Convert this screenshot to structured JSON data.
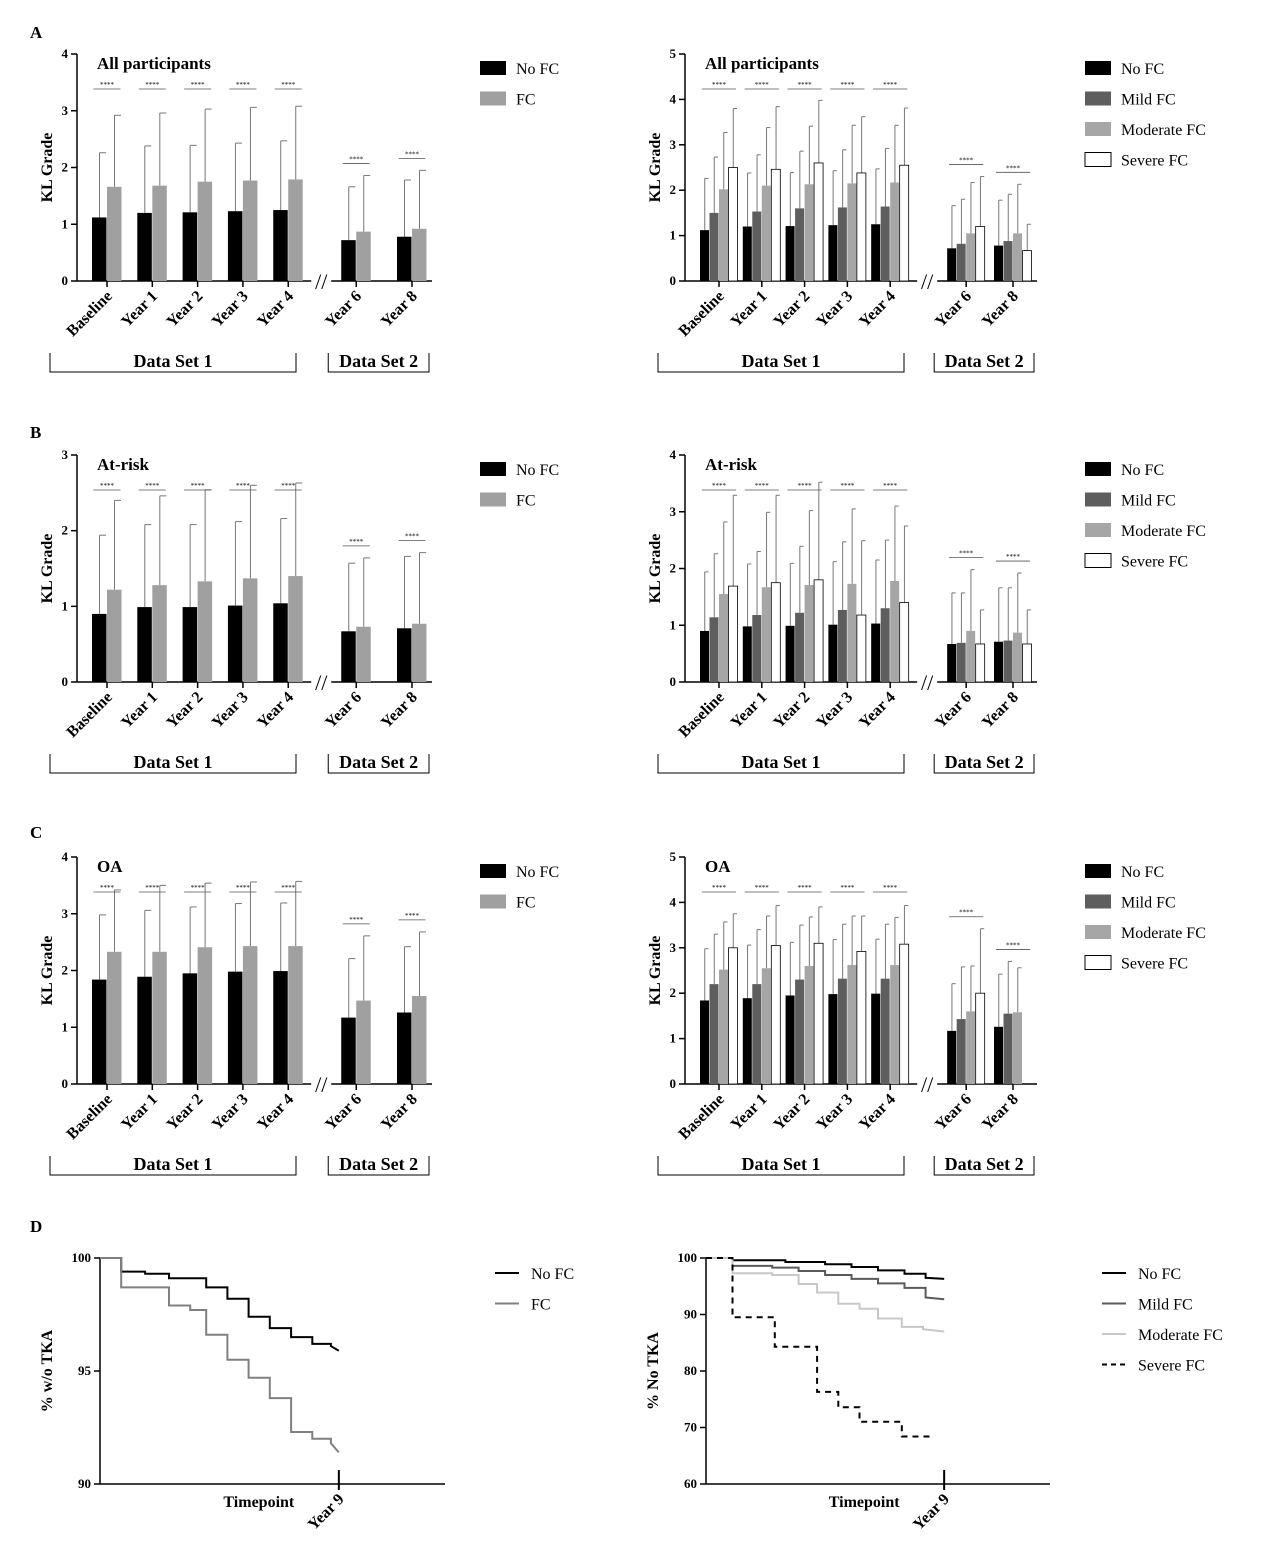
{
  "panel_labels": [
    "A",
    "B",
    "C",
    "D"
  ],
  "colors": {
    "no_fc": "#000000",
    "fc": "#a0a0a0",
    "mild_fc": "#5e5e5e",
    "moderate_fc": "#a6a6a6",
    "severe_fc": "#ffffff",
    "km_no_fc": "#000000",
    "km_fc": "#808080",
    "km_mild_fc": "#5a5a5a",
    "km_moderate_fc": "#c8c8c8",
    "km_severe_fc": "#000000"
  },
  "chart_data": [
    {
      "id": "A-left",
      "panel": "A",
      "type": "bar",
      "title": "All participants",
      "ylabel": "KL Grade",
      "ylim": [
        0,
        4
      ],
      "yticks": [
        "0",
        "1",
        "2",
        "3",
        "4"
      ],
      "categories": [
        "Baseline",
        "Year 1",
        "Year 2",
        "Year 3",
        "Year 4",
        "Year 6",
        "Year 8"
      ],
      "groups": [
        "Data Set 1",
        "Data Set 2"
      ],
      "break_marker": "//",
      "significance": "****",
      "legend": [
        "No FC",
        "FC"
      ],
      "series": [
        {
          "name": "No FC",
          "values": [
            1.12,
            1.2,
            1.21,
            1.23,
            1.25,
            0.72,
            0.78
          ],
          "errors": [
            1.14,
            1.18,
            1.18,
            1.2,
            1.22,
            0.94,
            1.0
          ]
        },
        {
          "name": "FC",
          "values": [
            1.66,
            1.68,
            1.75,
            1.77,
            1.79,
            0.87,
            0.92
          ],
          "errors": [
            1.26,
            1.28,
            1.28,
            1.29,
            1.29,
            0.99,
            1.03
          ]
        }
      ]
    },
    {
      "id": "A-right",
      "panel": "A",
      "type": "bar",
      "title": "All participants",
      "ylabel": "KL Grade",
      "ylim": [
        0,
        5
      ],
      "yticks": [
        "0",
        "1",
        "2",
        "3",
        "4",
        "5"
      ],
      "categories": [
        "Baseline",
        "Year 1",
        "Year 2",
        "Year 3",
        "Year 4",
        "Year 6",
        "Year 8"
      ],
      "groups": [
        "Data Set 1",
        "Data Set 2"
      ],
      "break_marker": "//",
      "significance": "****",
      "legend": [
        "No FC",
        "Mild FC",
        "Moderate FC",
        "Severe FC"
      ],
      "series": [
        {
          "name": "No FC",
          "values": [
            1.12,
            1.2,
            1.21,
            1.23,
            1.25,
            0.72,
            0.78
          ],
          "errors": [
            1.14,
            1.18,
            1.18,
            1.2,
            1.22,
            0.94,
            1.0
          ]
        },
        {
          "name": "Mild FC",
          "values": [
            1.5,
            1.53,
            1.6,
            1.62,
            1.64,
            0.82,
            0.88
          ],
          "errors": [
            1.23,
            1.25,
            1.26,
            1.27,
            1.28,
            0.98,
            1.03
          ]
        },
        {
          "name": "Moderate FC",
          "values": [
            2.02,
            2.1,
            2.13,
            2.15,
            2.17,
            1.05,
            1.05
          ],
          "errors": [
            1.25,
            1.28,
            1.28,
            1.28,
            1.26,
            1.12,
            1.08
          ]
        },
        {
          "name": "Severe FC",
          "values": [
            2.5,
            2.46,
            2.6,
            2.38,
            2.55,
            1.2,
            0.67
          ],
          "errors": [
            1.3,
            1.38,
            1.38,
            1.24,
            1.26,
            1.1,
            0.58
          ]
        }
      ]
    },
    {
      "id": "B-left",
      "panel": "B",
      "type": "bar",
      "title": "At-risk",
      "ylabel": "KL Grade",
      "ylim": [
        0,
        3
      ],
      "yticks": [
        "0",
        "1",
        "2",
        "3"
      ],
      "categories": [
        "Baseline",
        "Year 1",
        "Year 2",
        "Year 3",
        "Year 4",
        "Year 6",
        "Year 8"
      ],
      "groups": [
        "Data Set 1",
        "Data Set 2"
      ],
      "break_marker": "//",
      "significance": "****",
      "legend": [
        "No FC",
        "FC"
      ],
      "series": [
        {
          "name": "No FC",
          "values": [
            0.9,
            0.99,
            0.99,
            1.01,
            1.04,
            0.67,
            0.71
          ],
          "errors": [
            1.04,
            1.09,
            1.09,
            1.11,
            1.12,
            0.9,
            0.95
          ]
        },
        {
          "name": "FC",
          "values": [
            1.22,
            1.28,
            1.33,
            1.37,
            1.4,
            0.73,
            0.77
          ],
          "errors": [
            1.18,
            1.18,
            1.21,
            1.23,
            1.23,
            0.91,
            0.94
          ]
        }
      ]
    },
    {
      "id": "B-right",
      "panel": "B",
      "type": "bar",
      "title": "At-risk",
      "ylabel": "KL Grade",
      "ylim": [
        0,
        4
      ],
      "yticks": [
        "0",
        "1",
        "2",
        "3",
        "4"
      ],
      "categories": [
        "Baseline",
        "Year 1",
        "Year 2",
        "Year 3",
        "Year 4",
        "Year 6",
        "Year 8"
      ],
      "groups": [
        "Data Set 1",
        "Data Set 2"
      ],
      "break_marker": "//",
      "significance": "****",
      "legend": [
        "No FC",
        "Mild FC",
        "Moderate FC",
        "Severe FC"
      ],
      "series": [
        {
          "name": "No FC",
          "values": [
            0.9,
            0.98,
            0.99,
            1.01,
            1.03,
            0.67,
            0.71
          ],
          "errors": [
            1.04,
            1.1,
            1.1,
            1.11,
            1.12,
            0.9,
            0.95
          ]
        },
        {
          "name": "Mild FC",
          "values": [
            1.14,
            1.18,
            1.22,
            1.27,
            1.3,
            0.69,
            0.73
          ],
          "errors": [
            1.12,
            1.12,
            1.17,
            1.2,
            1.2,
            0.88,
            0.93
          ]
        },
        {
          "name": "Moderate FC",
          "values": [
            1.55,
            1.67,
            1.71,
            1.73,
            1.78,
            0.9,
            0.87
          ],
          "errors": [
            1.27,
            1.32,
            1.31,
            1.32,
            1.32,
            1.08,
            1.05
          ]
        },
        {
          "name": "Severe FC",
          "values": [
            1.69,
            1.75,
            1.8,
            1.18,
            1.4,
            0.67,
            0.67
          ],
          "errors": [
            1.6,
            1.54,
            1.72,
            1.31,
            1.35,
            0.6,
            0.6
          ]
        }
      ]
    },
    {
      "id": "C-left",
      "panel": "C",
      "type": "bar",
      "title": "OA",
      "ylabel": "KL Grade",
      "ylim": [
        0,
        4
      ],
      "yticks": [
        "0",
        "1",
        "2",
        "3",
        "4"
      ],
      "categories": [
        "Baseline",
        "Year 1",
        "Year 2",
        "Year 3",
        "Year 4",
        "Year 6",
        "Year 8"
      ],
      "groups": [
        "Data Set 1",
        "Data Set 2"
      ],
      "break_marker": "//",
      "significance": "****",
      "legend": [
        "No FC",
        "FC"
      ],
      "series": [
        {
          "name": "No FC",
          "values": [
            1.84,
            1.89,
            1.95,
            1.98,
            1.99,
            1.17,
            1.26
          ],
          "errors": [
            1.14,
            1.17,
            1.17,
            1.2,
            1.2,
            1.04,
            1.16
          ]
        },
        {
          "name": "FC",
          "values": [
            2.33,
            2.33,
            2.41,
            2.43,
            2.43,
            1.47,
            1.55
          ],
          "errors": [
            1.09,
            1.17,
            1.13,
            1.13,
            1.14,
            1.14,
            1.13
          ]
        }
      ]
    },
    {
      "id": "C-right",
      "panel": "C",
      "type": "bar",
      "title": "OA",
      "ylabel": "KL Grade",
      "ylim": [
        0,
        5
      ],
      "yticks": [
        "0",
        "1",
        "2",
        "3",
        "4",
        "5"
      ],
      "categories": [
        "Baseline",
        "Year 1",
        "Year 2",
        "Year 3",
        "Year 4",
        "Year 6",
        "Year 8"
      ],
      "groups": [
        "Data Set 1",
        "Data Set 2"
      ],
      "break_marker": "//",
      "significance": "****",
      "legend": [
        "No FC",
        "Mild FC",
        "Moderate FC",
        "Severe FC"
      ],
      "series": [
        {
          "name": "No FC",
          "values": [
            1.84,
            1.89,
            1.95,
            1.98,
            1.99,
            1.17,
            1.26
          ],
          "errors": [
            1.14,
            1.17,
            1.17,
            1.2,
            1.2,
            1.04,
            1.16
          ]
        },
        {
          "name": "Mild FC",
          "values": [
            2.2,
            2.2,
            2.3,
            2.32,
            2.32,
            1.43,
            1.55
          ],
          "errors": [
            1.1,
            1.2,
            1.2,
            1.2,
            1.2,
            1.15,
            1.15
          ]
        },
        {
          "name": "Moderate FC",
          "values": [
            2.52,
            2.55,
            2.6,
            2.62,
            2.62,
            1.6,
            1.58
          ],
          "errors": [
            1.05,
            1.15,
            1.08,
            1.08,
            1.05,
            1.0,
            0.98
          ]
        },
        {
          "name": "Severe FC",
          "values": [
            3.0,
            3.05,
            3.1,
            2.92,
            3.08,
            2.0,
            null
          ],
          "errors": [
            0.75,
            0.88,
            0.8,
            0.78,
            0.85,
            1.42,
            null
          ]
        }
      ]
    },
    {
      "id": "D-left",
      "panel": "D",
      "type": "line",
      "step": true,
      "ylabel": "% w/o TKA",
      "ylim": [
        90,
        100
      ],
      "yticks": [
        "90",
        "95",
        "100"
      ],
      "xlabel": "Timepoint",
      "xtick": "Year 9",
      "xlim": [
        0,
        13
      ],
      "xtick_at": 9,
      "legend": [
        "No FC",
        "FC"
      ],
      "series": [
        {
          "name": "No FC",
          "style": "solid",
          "x": [
            0,
            0.8,
            0.8,
            1.7,
            1.7,
            2.6,
            2.6,
            4.0,
            4.0,
            4.8,
            4.8,
            5.6,
            5.6,
            6.4,
            6.4,
            7.2,
            7.2,
            8.0,
            8.0,
            8.7,
            8.7,
            9.0
          ],
          "y": [
            100,
            100,
            99.4,
            99.4,
            99.3,
            99.3,
            99.1,
            99.1,
            98.7,
            98.7,
            98.2,
            98.2,
            97.4,
            97.4,
            96.9,
            96.9,
            96.5,
            96.5,
            96.2,
            96.2,
            96.1,
            95.9
          ]
        },
        {
          "name": "FC",
          "style": "solid",
          "x": [
            0,
            0.8,
            0.8,
            2.6,
            2.6,
            3.4,
            3.4,
            4.0,
            4.0,
            4.8,
            4.8,
            5.6,
            5.6,
            6.4,
            6.4,
            7.2,
            7.2,
            8.0,
            8.0,
            8.7,
            8.7,
            9.0
          ],
          "y": [
            100,
            100,
            98.7,
            98.7,
            97.9,
            97.9,
            97.7,
            97.7,
            96.6,
            96.6,
            95.5,
            95.5,
            94.7,
            94.7,
            93.8,
            93.8,
            92.3,
            92.3,
            92.0,
            92.0,
            91.8,
            91.4
          ]
        }
      ]
    },
    {
      "id": "D-right",
      "panel": "D",
      "type": "line",
      "step": true,
      "ylabel": "% No TKA",
      "ylim": [
        60,
        100
      ],
      "yticks": [
        "60",
        "70",
        "80",
        "90",
        "100"
      ],
      "xlabel": "Timepoint",
      "xtick": "Year 9",
      "xlim": [
        0,
        13
      ],
      "xtick_at": 9,
      "legend": [
        "No FC",
        "Mild FC",
        "Moderate FC",
        "Severe FC"
      ],
      "series": [
        {
          "name": "No FC",
          "style": "solid",
          "x": [
            0,
            1.0,
            1.0,
            3.0,
            3.0,
            4.5,
            4.5,
            5.5,
            5.5,
            6.5,
            6.5,
            7.5,
            7.5,
            8.3,
            8.3,
            9.0
          ],
          "y": [
            100,
            100,
            99.6,
            99.6,
            99.3,
            99.3,
            98.9,
            98.9,
            98.4,
            98.4,
            97.8,
            97.8,
            97.2,
            97.2,
            96.5,
            96.3
          ]
        },
        {
          "name": "Mild FC",
          "style": "solid",
          "x": [
            0,
            1.0,
            1.0,
            2.5,
            2.5,
            3.5,
            3.5,
            4.5,
            4.5,
            5.5,
            5.5,
            6.5,
            6.5,
            7.5,
            7.5,
            8.3,
            8.3,
            9.0
          ],
          "y": [
            100,
            100,
            98.6,
            98.6,
            98.3,
            98.3,
            97.7,
            97.7,
            97.0,
            97.0,
            96.3,
            96.3,
            95.5,
            95.5,
            94.7,
            94.7,
            93.0,
            92.7
          ]
        },
        {
          "name": "Moderate FC",
          "style": "solid",
          "x": [
            0,
            1.0,
            1.0,
            2.5,
            2.5,
            3.5,
            3.5,
            4.2,
            4.2,
            5.0,
            5.0,
            5.8,
            5.8,
            6.5,
            6.5,
            7.4,
            7.4,
            8.2,
            8.2,
            9.0
          ],
          "y": [
            100,
            100,
            97.3,
            97.3,
            97.0,
            97.0,
            95.4,
            95.4,
            93.9,
            93.9,
            91.9,
            91.9,
            91.0,
            91.0,
            89.3,
            89.3,
            87.8,
            87.8,
            87.4,
            87.0
          ]
        },
        {
          "name": "Severe FC",
          "style": "dashed",
          "x": [
            0,
            1.0,
            1.0,
            2.6,
            2.6,
            4.2,
            4.2,
            5.0,
            5.0,
            5.8,
            5.8,
            7.4,
            7.4,
            8.6
          ],
          "y": [
            100,
            100,
            89.5,
            89.5,
            84.3,
            84.3,
            76.3,
            76.3,
            73.6,
            73.6,
            71.0,
            71.0,
            68.4,
            68.4
          ]
        }
      ]
    }
  ]
}
